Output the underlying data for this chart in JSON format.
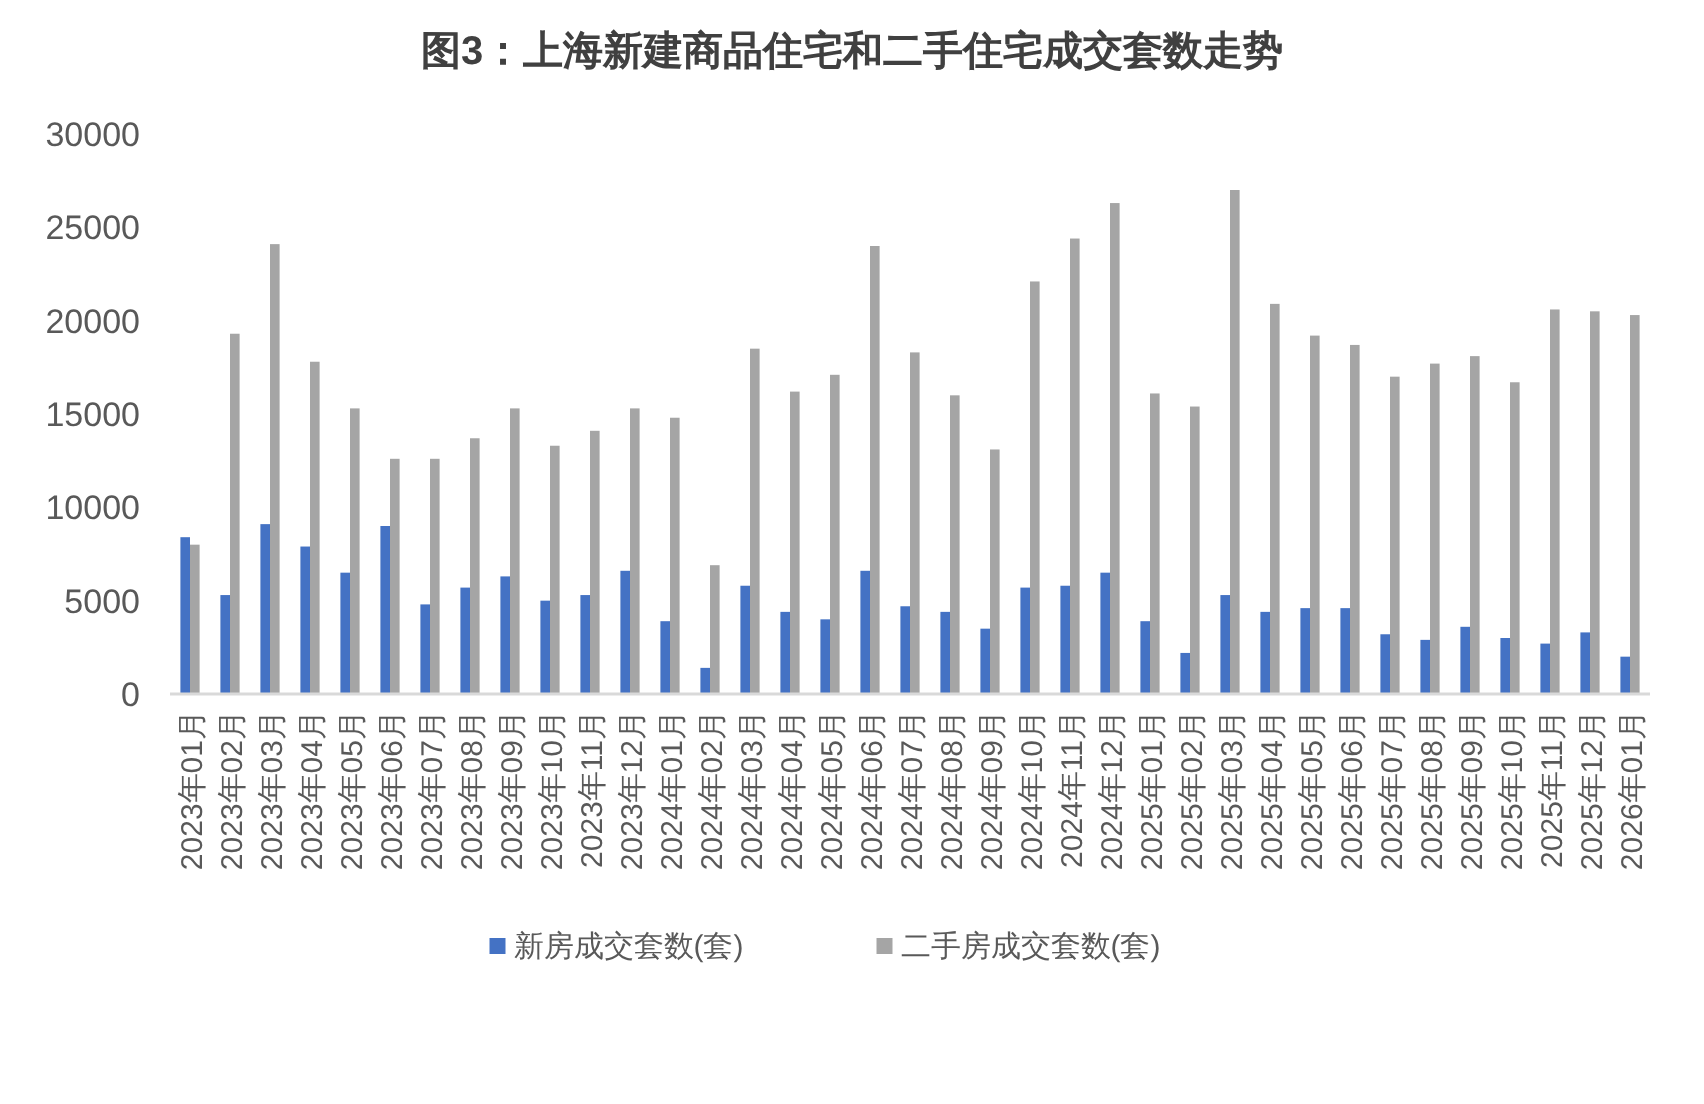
{
  "chart_data": {
    "type": "bar",
    "title": "图3：上海新建商品住宅和二手住宅成交套数走势",
    "categories": [
      "2023年01月",
      "2023年02月",
      "2023年03月",
      "2023年04月",
      "2023年05月",
      "2023年06月",
      "2023年07月",
      "2023年08月",
      "2023年09月",
      "2023年10月",
      "2023年11月",
      "2023年12月",
      "2024年01月",
      "2024年02月",
      "2024年03月",
      "2024年04月",
      "2024年05月",
      "2024年06月",
      "2024年07月",
      "2024年08月",
      "2024年09月",
      "2024年10月",
      "2024年11月",
      "2024年12月",
      "2025年01月",
      "2025年02月",
      "2025年03月",
      "2025年04月",
      "2025年05月",
      "2025年06月",
      "2025年07月",
      "2025年08月",
      "2025年09月",
      "2025年10月",
      "2025年11月",
      "2025年12月",
      "2026年01月"
    ],
    "series": [
      {
        "name": "新房成交套数(套)",
        "color": "#4472c4",
        "values": [
          8400,
          5300,
          9100,
          7900,
          6500,
          9000,
          4800,
          5700,
          6300,
          5000,
          5300,
          6600,
          3900,
          1400,
          5800,
          4400,
          4000,
          6600,
          4700,
          4400,
          3500,
          5700,
          5800,
          6500,
          3900,
          2200,
          5300,
          4400,
          4600,
          4600,
          3200,
          2900,
          3600,
          3000,
          2700,
          3300,
          2000
        ]
      },
      {
        "name": "二手房成交套数(套)",
        "color": "#a5a5a5",
        "values": [
          8000,
          19300,
          24100,
          17800,
          15300,
          12600,
          12600,
          13700,
          15300,
          13300,
          14100,
          15300,
          14800,
          6900,
          18500,
          16200,
          17100,
          24000,
          18300,
          16000,
          13100,
          22100,
          24400,
          26300,
          16100,
          15400,
          27000,
          20900,
          19200,
          18700,
          17000,
          17700,
          18100,
          16700,
          20600,
          20500,
          20300
        ]
      }
    ],
    "ylim": [
      0,
      30000
    ],
    "yticks": [
      0,
      5000,
      10000,
      15000,
      20000,
      25000,
      30000
    ],
    "grid": false,
    "legend": "bottom"
  }
}
